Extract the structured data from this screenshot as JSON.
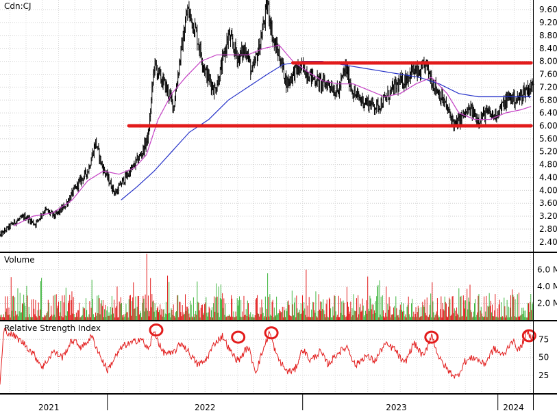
{
  "chart_data": [
    {
      "type": "line",
      "panel": "price",
      "symbol": "Cdn:CJ",
      "ylim": [
        2.1,
        9.9
      ],
      "y_ticks": [
        "9.60",
        "9.20",
        "8.80",
        "8.40",
        "8.00",
        "7.60",
        "7.20",
        "6.80",
        "6.40",
        "6.00",
        "5.60",
        "5.20",
        "4.80",
        "4.40",
        "4.00",
        "3.60",
        "3.20",
        "2.80",
        "2.40"
      ],
      "x_tick_labels": [
        "2021",
        "2022",
        "2023",
        "2024"
      ],
      "x_range": [
        2021.45,
        2024.18
      ],
      "price_path": [
        [
          2021.45,
          2.6
        ],
        [
          2021.52,
          3.0
        ],
        [
          2021.58,
          3.2
        ],
        [
          2021.63,
          2.95
        ],
        [
          2021.68,
          3.4
        ],
        [
          2021.73,
          3.2
        ],
        [
          2021.78,
          3.5
        ],
        [
          2021.85,
          4.2
        ],
        [
          2021.9,
          4.6
        ],
        [
          2021.94,
          5.5
        ],
        [
          2021.97,
          4.8
        ],
        [
          2022.0,
          4.4
        ],
        [
          2022.04,
          3.9
        ],
        [
          2022.08,
          4.3
        ],
        [
          2022.13,
          4.7
        ],
        [
          2022.18,
          5.2
        ],
        [
          2022.21,
          5.7
        ],
        [
          2022.24,
          7.9
        ],
        [
          2022.27,
          7.5
        ],
        [
          2022.3,
          7.2
        ],
        [
          2022.34,
          6.6
        ],
        [
          2022.37,
          8.0
        ],
        [
          2022.41,
          9.6
        ],
        [
          2022.45,
          9.0
        ],
        [
          2022.5,
          7.7
        ],
        [
          2022.55,
          7.1
        ],
        [
          2022.58,
          7.7
        ],
        [
          2022.62,
          8.8
        ],
        [
          2022.67,
          8.1
        ],
        [
          2022.71,
          8.4
        ],
        [
          2022.74,
          7.6
        ],
        [
          2022.78,
          8.5
        ],
        [
          2022.82,
          9.8
        ],
        [
          2022.85,
          8.6
        ],
        [
          2022.88,
          8.2
        ],
        [
          2022.92,
          7.3
        ],
        [
          2022.96,
          7.7
        ],
        [
          2023.0,
          7.8
        ],
        [
          2023.05,
          7.5
        ],
        [
          2023.1,
          7.3
        ],
        [
          2023.14,
          7.3
        ],
        [
          2023.18,
          7.0
        ],
        [
          2023.22,
          7.8
        ],
        [
          2023.26,
          7.0
        ],
        [
          2023.3,
          6.8
        ],
        [
          2023.34,
          6.7
        ],
        [
          2023.38,
          6.6
        ],
        [
          2023.42,
          6.8
        ],
        [
          2023.47,
          7.2
        ],
        [
          2023.52,
          7.4
        ],
        [
          2023.56,
          7.7
        ],
        [
          2023.6,
          7.6
        ],
        [
          2023.63,
          7.9
        ],
        [
          2023.67,
          7.3
        ],
        [
          2023.71,
          6.9
        ],
        [
          2023.75,
          6.4
        ],
        [
          2023.78,
          6.0
        ],
        [
          2023.82,
          6.3
        ],
        [
          2023.86,
          6.5
        ],
        [
          2023.9,
          6.2
        ],
        [
          2023.94,
          6.4
        ],
        [
          2023.98,
          6.3
        ],
        [
          2024.02,
          6.6
        ],
        [
          2024.06,
          6.9
        ],
        [
          2024.1,
          6.8
        ],
        [
          2024.14,
          7.1
        ],
        [
          2024.17,
          7.2
        ]
      ],
      "ma_fast": [
        [
          2021.52,
          2.9
        ],
        [
          2021.62,
          3.2
        ],
        [
          2021.72,
          3.3
        ],
        [
          2021.82,
          3.7
        ],
        [
          2021.9,
          4.3
        ],
        [
          2021.98,
          4.6
        ],
        [
          2022.06,
          4.5
        ],
        [
          2022.14,
          4.7
        ],
        [
          2022.2,
          5.1
        ],
        [
          2022.26,
          6.2
        ],
        [
          2022.33,
          7.0
        ],
        [
          2022.4,
          7.5
        ],
        [
          2022.48,
          8.0
        ],
        [
          2022.56,
          8.2
        ],
        [
          2022.64,
          8.2
        ],
        [
          2022.72,
          8.2
        ],
        [
          2022.8,
          8.4
        ],
        [
          2022.88,
          8.5
        ],
        [
          2022.95,
          8.0
        ],
        [
          2023.02,
          7.7
        ],
        [
          2023.1,
          7.4
        ],
        [
          2023.18,
          7.3
        ],
        [
          2023.26,
          7.3
        ],
        [
          2023.34,
          7.1
        ],
        [
          2023.42,
          6.9
        ],
        [
          2023.5,
          7.0
        ],
        [
          2023.58,
          7.3
        ],
        [
          2023.66,
          7.5
        ],
        [
          2023.74,
          7.0
        ],
        [
          2023.8,
          6.4
        ],
        [
          2023.88,
          6.2
        ],
        [
          2023.96,
          6.2
        ],
        [
          2024.04,
          6.4
        ],
        [
          2024.12,
          6.5
        ],
        [
          2024.17,
          6.6
        ]
      ],
      "ma_slow": [
        [
          2022.07,
          3.7
        ],
        [
          2022.15,
          4.1
        ],
        [
          2022.24,
          4.6
        ],
        [
          2022.33,
          5.2
        ],
        [
          2022.42,
          5.8
        ],
        [
          2022.52,
          6.2
        ],
        [
          2022.62,
          6.8
        ],
        [
          2022.72,
          7.2
        ],
        [
          2022.82,
          7.6
        ],
        [
          2022.9,
          7.9
        ],
        [
          2023.0,
          8.0
        ],
        [
          2023.1,
          8.0
        ],
        [
          2023.2,
          7.9
        ],
        [
          2023.3,
          7.8
        ],
        [
          2023.4,
          7.7
        ],
        [
          2023.5,
          7.6
        ],
        [
          2023.6,
          7.5
        ],
        [
          2023.7,
          7.3
        ],
        [
          2023.8,
          7.0
        ],
        [
          2023.9,
          6.9
        ],
        [
          2024.0,
          6.9
        ],
        [
          2024.1,
          6.9
        ],
        [
          2024.17,
          6.9
        ]
      ],
      "resistance_line": {
        "value": 7.95,
        "x_start": 2022.95,
        "x_end": 2024.17,
        "color": "#e21b1b"
      },
      "support_line": {
        "value": 6.0,
        "x_start": 2022.11,
        "x_end": 2024.17,
        "color": "#e21b1b"
      },
      "price_color": "#000000",
      "ma_fast_color": "#c43fc4",
      "ma_slow_color": "#2430c8",
      "grid": true
    },
    {
      "type": "bar",
      "panel": "volume",
      "title": "Volume",
      "ylim": [
        0,
        8.0
      ],
      "y_ticks": [
        "6.0 M",
        "4.0 M",
        "2.0 M"
      ],
      "spikes": [
        [
          2022.2,
          8.4
        ],
        [
          2022.31,
          5.3
        ],
        [
          2022.22,
          5.0
        ],
        [
          2022.05,
          4.0
        ],
        [
          2021.92,
          4.8
        ],
        [
          2022.82,
          5.6
        ],
        [
          2023.02,
          6.0
        ],
        [
          2022.46,
          4.6
        ],
        [
          2023.8,
          3.8
        ],
        [
          2023.73,
          2.8
        ],
        [
          2024.17,
          3.1
        ],
        [
          2021.54,
          3.8
        ],
        [
          2022.59,
          3.2
        ]
      ],
      "up_color": "#3fb53f",
      "down_color": "#e21b1b",
      "grid": true
    },
    {
      "type": "line",
      "panel": "rsi",
      "title": "Relative Strength Index",
      "ylim": [
        0,
        100
      ],
      "y_ticks": [
        "75",
        "50",
        "25"
      ],
      "rsi_path": [
        [
          2021.45,
          12
        ],
        [
          2021.47,
          88
        ],
        [
          2021.52,
          80
        ],
        [
          2021.57,
          70
        ],
        [
          2021.62,
          55
        ],
        [
          2021.67,
          36
        ],
        [
          2021.72,
          58
        ],
        [
          2021.77,
          50
        ],
        [
          2021.82,
          74
        ],
        [
          2021.87,
          64
        ],
        [
          2021.92,
          79
        ],
        [
          2021.97,
          48
        ],
        [
          2022.0,
          32
        ],
        [
          2022.04,
          50
        ],
        [
          2022.08,
          66
        ],
        [
          2022.13,
          70
        ],
        [
          2022.17,
          77
        ],
        [
          2022.21,
          60
        ],
        [
          2022.24,
          87
        ],
        [
          2022.28,
          58
        ],
        [
          2022.33,
          54
        ],
        [
          2022.38,
          70
        ],
        [
          2022.42,
          56
        ],
        [
          2022.46,
          40
        ],
        [
          2022.5,
          44
        ],
        [
          2022.55,
          70
        ],
        [
          2022.59,
          80
        ],
        [
          2022.63,
          58
        ],
        [
          2022.67,
          45
        ],
        [
          2022.72,
          65
        ],
        [
          2022.76,
          30
        ],
        [
          2022.8,
          62
        ],
        [
          2022.83,
          85
        ],
        [
          2022.87,
          50
        ],
        [
          2022.92,
          30
        ],
        [
          2022.96,
          32
        ],
        [
          2023.0,
          62
        ],
        [
          2023.04,
          45
        ],
        [
          2023.09,
          58
        ],
        [
          2023.13,
          40
        ],
        [
          2023.18,
          56
        ],
        [
          2023.23,
          65
        ],
        [
          2023.27,
          38
        ],
        [
          2023.32,
          52
        ],
        [
          2023.37,
          45
        ],
        [
          2023.42,
          68
        ],
        [
          2023.47,
          62
        ],
        [
          2023.52,
          40
        ],
        [
          2023.57,
          70
        ],
        [
          2023.62,
          50
        ],
        [
          2023.66,
          82
        ],
        [
          2023.7,
          48
        ],
        [
          2023.75,
          30
        ],
        [
          2023.79,
          22
        ],
        [
          2023.83,
          44
        ],
        [
          2023.88,
          50
        ],
        [
          2023.93,
          40
        ],
        [
          2023.98,
          62
        ],
        [
          2024.03,
          52
        ],
        [
          2024.07,
          74
        ],
        [
          2024.11,
          60
        ],
        [
          2024.15,
          84
        ],
        [
          2024.17,
          78
        ]
      ],
      "circles": [
        [
          2022.25,
          88
        ],
        [
          2022.67,
          78
        ],
        [
          2022.84,
          84
        ],
        [
          2023.66,
          78
        ],
        [
          2024.16,
          80
        ]
      ],
      "line_color": "#e21b1b",
      "circle_color": "#e21b1b",
      "grid": true
    }
  ]
}
